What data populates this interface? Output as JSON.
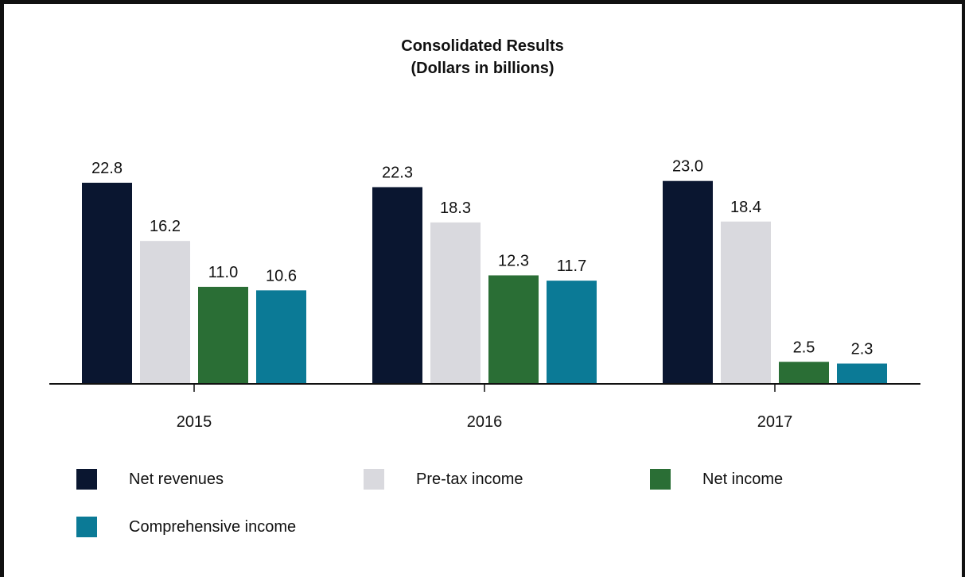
{
  "chart_data": {
    "type": "bar",
    "title": "Consolidated Results",
    "subtitle": "(Dollars in billions)",
    "xlabel": "",
    "ylabel": "",
    "categories": [
      "2015",
      "2016",
      "2017"
    ],
    "series": [
      {
        "name": "Net revenues",
        "values": [
          22.8,
          22.3,
          23.0
        ],
        "color": "#0a1630",
        "labels": [
          "22.8",
          "22.3",
          "23.0"
        ]
      },
      {
        "name": "Pre-tax income",
        "values": [
          16.2,
          18.3,
          18.4
        ],
        "color": "#d9d9de",
        "labels": [
          "16.2",
          "18.3",
          "18.4"
        ]
      },
      {
        "name": "Net income",
        "values": [
          11.0,
          12.3,
          2.5
        ],
        "color": "#2a6e35",
        "labels": [
          "11.0",
          "12.3",
          "2.5"
        ]
      },
      {
        "name": "Comprehensive income",
        "values": [
          10.6,
          11.7,
          2.3
        ],
        "color": "#0b7a96",
        "labels": [
          "10.6",
          "11.7",
          "2.3"
        ]
      }
    ],
    "ylim": [
      0,
      25
    ],
    "grid": false,
    "legend_position": "bottom"
  }
}
